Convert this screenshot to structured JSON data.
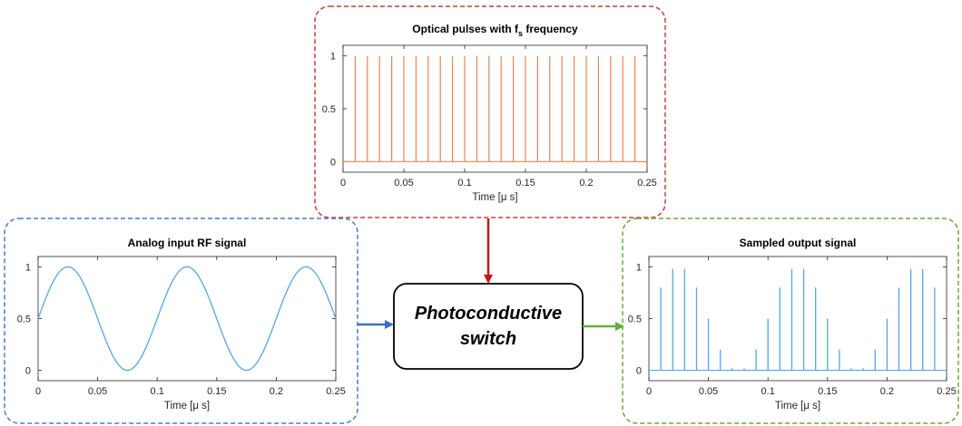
{
  "switch_label": [
    "Photoconductive",
    "switch"
  ],
  "colors": {
    "optical_border": "#d23a3a",
    "input_border": "#4a7cc8",
    "output_border": "#6aaa3c",
    "optical_line": "#e8845a",
    "signal_line": "#5aa6dd",
    "arrow_red": "#c01818",
    "arrow_blue": "#3f6fc2",
    "arrow_green": "#6aaa3c"
  },
  "chart_data": [
    {
      "id": "optical",
      "type": "line",
      "title": "Optical pulses with f",
      "title_subscript": "s",
      "title_suffix": " frequency",
      "xlabel": "Time [μ s]",
      "ylabel": "",
      "xlim": [
        0,
        0.25
      ],
      "ylim": [
        0,
        1
      ],
      "xticks": [
        "0",
        "0.05",
        "0.1",
        "0.15",
        "0.2",
        "0.25"
      ],
      "yticks": [
        "0",
        "0.5",
        "1"
      ],
      "pulse_period": 0.01,
      "pulse_amplitude": 1,
      "pulse_start": 0.01,
      "pulse_end": 0.24
    },
    {
      "id": "input",
      "type": "line",
      "title": "Analog input RF signal",
      "xlabel": "Time [μ s]",
      "ylabel": "",
      "xlim": [
        0,
        0.25
      ],
      "ylim": [
        0,
        1
      ],
      "xticks": [
        "0",
        "0.05",
        "0.1",
        "0.15",
        "0.2",
        "0.25"
      ],
      "yticks": [
        "0",
        "0.5",
        "1"
      ],
      "signal": "y = 0.5 + 0.5 sin(2π t / 0.1)",
      "period": 0.1
    },
    {
      "id": "output",
      "type": "bar",
      "title": "Sampled output signal",
      "xlabel": "Time [μ s]",
      "ylabel": "",
      "xlim": [
        0,
        0.25
      ],
      "ylim": [
        0,
        1
      ],
      "xticks": [
        "0",
        "0.05",
        "0.1",
        "0.15",
        "0.2",
        "0.25"
      ],
      "yticks": [
        "0",
        "0.5",
        "1"
      ],
      "x": [
        0.01,
        0.02,
        0.03,
        0.04,
        0.05,
        0.06,
        0.07,
        0.08,
        0.09,
        0.1,
        0.11,
        0.12,
        0.13,
        0.14,
        0.15,
        0.16,
        0.17,
        0.18,
        0.19,
        0.2,
        0.21,
        0.22,
        0.23,
        0.24
      ],
      "values": [
        0.8,
        0.98,
        0.98,
        0.8,
        0.5,
        0.2,
        0.02,
        0.02,
        0.2,
        0.5,
        0.8,
        0.98,
        0.98,
        0.8,
        0.5,
        0.2,
        0.02,
        0.02,
        0.2,
        0.5,
        0.8,
        0.98,
        0.98,
        0.8
      ]
    }
  ]
}
